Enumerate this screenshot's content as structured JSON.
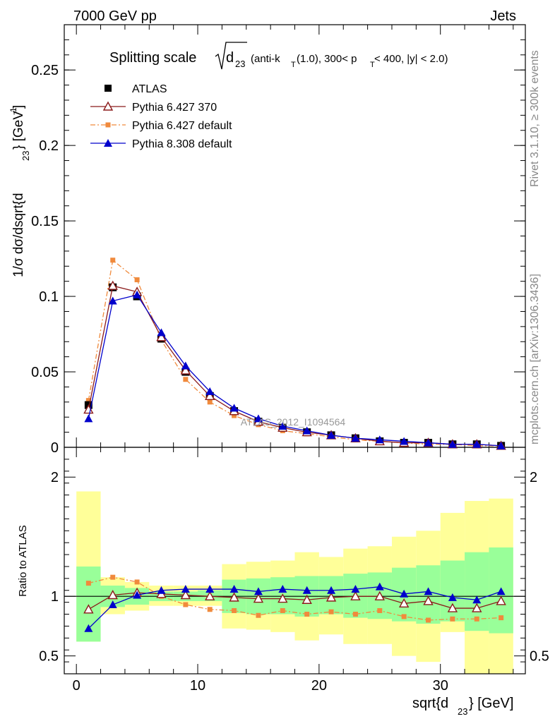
{
  "header": {
    "left": "7000 GeV pp",
    "right": "Jets"
  },
  "side_labels": {
    "rivet": "Rivet 3.1.10, ≥ 300k events",
    "mcplots": "mcplots.cern.ch [arXiv:1306.3436]"
  },
  "watermark": "ATLAS_2012_I1094564",
  "chart_data": [
    {
      "type": "line",
      "panel": "main",
      "title": "Splitting scale",
      "title_sqrt_symbol": "d",
      "title_sqrt_sub": "23",
      "title_rest": "(anti-k",
      "title_kt_sub": "T",
      "title_rest2": "(1.0), 300< p",
      "title_pt_sub": "T",
      "title_rest3": " < 400, |y| < 2.0)",
      "ylabel_parts": [
        "1/σ dσ/dsqrt{d",
        "23",
        "} [GeV",
        "-1",
        "]"
      ],
      "xlim": [
        -1,
        37
      ],
      "ylim": [
        0,
        0.28
      ],
      "yticks": [
        0,
        0.05,
        0.1,
        0.15,
        0.2,
        0.25
      ],
      "ytick_labels": [
        "0",
        "0.05",
        "0.1",
        "0.15",
        "0.2",
        "0.25"
      ],
      "legend_position": "top-left",
      "x": [
        1,
        3,
        5,
        7,
        9,
        11,
        13,
        15,
        17,
        19,
        21,
        23,
        25,
        27,
        29,
        31,
        33,
        35
      ],
      "series": [
        {
          "name": "ATLAS",
          "color": "#000000",
          "marker": "square-filled",
          "line": "none",
          "values": [
            0.028,
            0.106,
            0.1,
            0.072,
            0.05,
            0.034,
            0.024,
            0.017,
            0.013,
            0.01,
            0.008,
            0.006,
            0.004,
            0.003,
            0.003,
            0.002,
            0.002,
            0.001
          ]
        },
        {
          "name": "Pythia 6.427 370",
          "color": "#8b1a1a",
          "marker": "triangle-open",
          "line": "solid",
          "values": [
            0.025,
            0.107,
            0.103,
            0.073,
            0.051,
            0.034,
            0.024,
            0.017,
            0.013,
            0.01,
            0.008,
            0.006,
            0.004,
            0.003,
            0.003,
            0.002,
            0.002,
            0.001
          ]
        },
        {
          "name": "Pythia 6.427 default",
          "color": "#f08a3c",
          "marker": "square-filled-small",
          "line": "dashdot",
          "values": [
            0.031,
            0.124,
            0.111,
            0.071,
            0.045,
            0.03,
            0.021,
            0.015,
            0.011,
            0.009,
            0.007,
            0.005,
            0.004,
            0.003,
            0.002,
            0.002,
            0.001,
            0.001
          ]
        },
        {
          "name": "Pythia 8.308 default",
          "color": "#0000cc",
          "marker": "triangle-filled",
          "line": "solid",
          "values": [
            0.019,
            0.097,
            0.101,
            0.076,
            0.054,
            0.037,
            0.026,
            0.019,
            0.014,
            0.011,
            0.008,
            0.006,
            0.005,
            0.004,
            0.003,
            0.002,
            0.002,
            0.001
          ]
        }
      ]
    },
    {
      "type": "line",
      "panel": "ratio",
      "ylabel": "Ratio to ATLAS",
      "xlabel_parts": [
        "sqrt{d",
        "23",
        "} [GeV]"
      ],
      "xlim": [
        -1,
        37
      ],
      "ylim": [
        0.35,
        2.25
      ],
      "xticks": [
        0,
        10,
        20,
        30
      ],
      "xtick_labels": [
        "0",
        "10",
        "20",
        "30"
      ],
      "yticks": [
        0.5,
        1,
        2
      ],
      "ytick_labels": [
        "0.5",
        "1",
        "2"
      ],
      "bin_edges": [
        0,
        2,
        4,
        6,
        8,
        10,
        12,
        14,
        16,
        18,
        20,
        22,
        24,
        26,
        28,
        30,
        32,
        34,
        36
      ],
      "band_yellow": [
        [
          0.62,
          1.88
        ],
        [
          0.85,
          1.16
        ],
        [
          0.88,
          1.12
        ],
        [
          0.92,
          1.09
        ],
        [
          0.92,
          1.09
        ],
        [
          0.92,
          1.09
        ],
        [
          0.73,
          1.27
        ],
        [
          0.72,
          1.29
        ],
        [
          0.7,
          1.3
        ],
        [
          0.63,
          1.37
        ],
        [
          0.68,
          1.33
        ],
        [
          0.6,
          1.4
        ],
        [
          0.6,
          1.42
        ],
        [
          0.5,
          1.5
        ],
        [
          0.45,
          1.55
        ],
        [
          0.7,
          1.7
        ],
        [
          0.35,
          1.8
        ],
        [
          0.35,
          1.82
        ]
      ],
      "band_green": [
        [
          0.62,
          1.25
        ],
        [
          0.91,
          1.09
        ],
        [
          0.93,
          1.07
        ],
        [
          0.96,
          1.04
        ],
        [
          0.96,
          1.04
        ],
        [
          0.96,
          1.05
        ],
        [
          0.86,
          1.14
        ],
        [
          0.85,
          1.15
        ],
        [
          0.85,
          1.16
        ],
        [
          0.83,
          1.17
        ],
        [
          0.85,
          1.17
        ],
        [
          0.82,
          1.19
        ],
        [
          0.81,
          1.2
        ],
        [
          0.79,
          1.24
        ],
        [
          0.77,
          1.26
        ],
        [
          0.79,
          1.3
        ],
        [
          0.71,
          1.37
        ],
        [
          0.69,
          1.41
        ]
      ],
      "x": [
        1,
        3,
        5,
        7,
        9,
        11,
        13,
        15,
        17,
        19,
        21,
        23,
        25,
        27,
        29,
        31,
        33,
        35
      ],
      "series": [
        {
          "name": "Pythia 6.427 370",
          "color": "#8b1a1a",
          "marker": "triangle-open",
          "line": "solid",
          "values": [
            0.89,
            1.01,
            1.03,
            1.02,
            1.01,
            1.0,
            0.99,
            0.98,
            0.98,
            0.97,
            0.99,
            1.0,
            1.0,
            0.94,
            0.96,
            0.9,
            0.9,
            0.96
          ]
        },
        {
          "name": "Pythia 6.427 default",
          "color": "#f08a3c",
          "marker": "square-filled-small",
          "line": "dashdot",
          "values": [
            1.11,
            1.16,
            1.12,
            1.0,
            0.93,
            0.89,
            0.88,
            0.84,
            0.88,
            0.85,
            0.87,
            0.85,
            0.88,
            0.83,
            0.8,
            0.81,
            0.81,
            0.82
          ]
        },
        {
          "name": "Pythia 8.308 default",
          "color": "#0000cc",
          "marker": "triangle-filled",
          "line": "solid",
          "values": [
            0.73,
            0.93,
            1.01,
            1.05,
            1.06,
            1.06,
            1.06,
            1.04,
            1.06,
            1.05,
            1.05,
            1.06,
            1.08,
            1.02,
            1.04,
            0.99,
            0.97,
            1.04
          ]
        }
      ]
    }
  ]
}
